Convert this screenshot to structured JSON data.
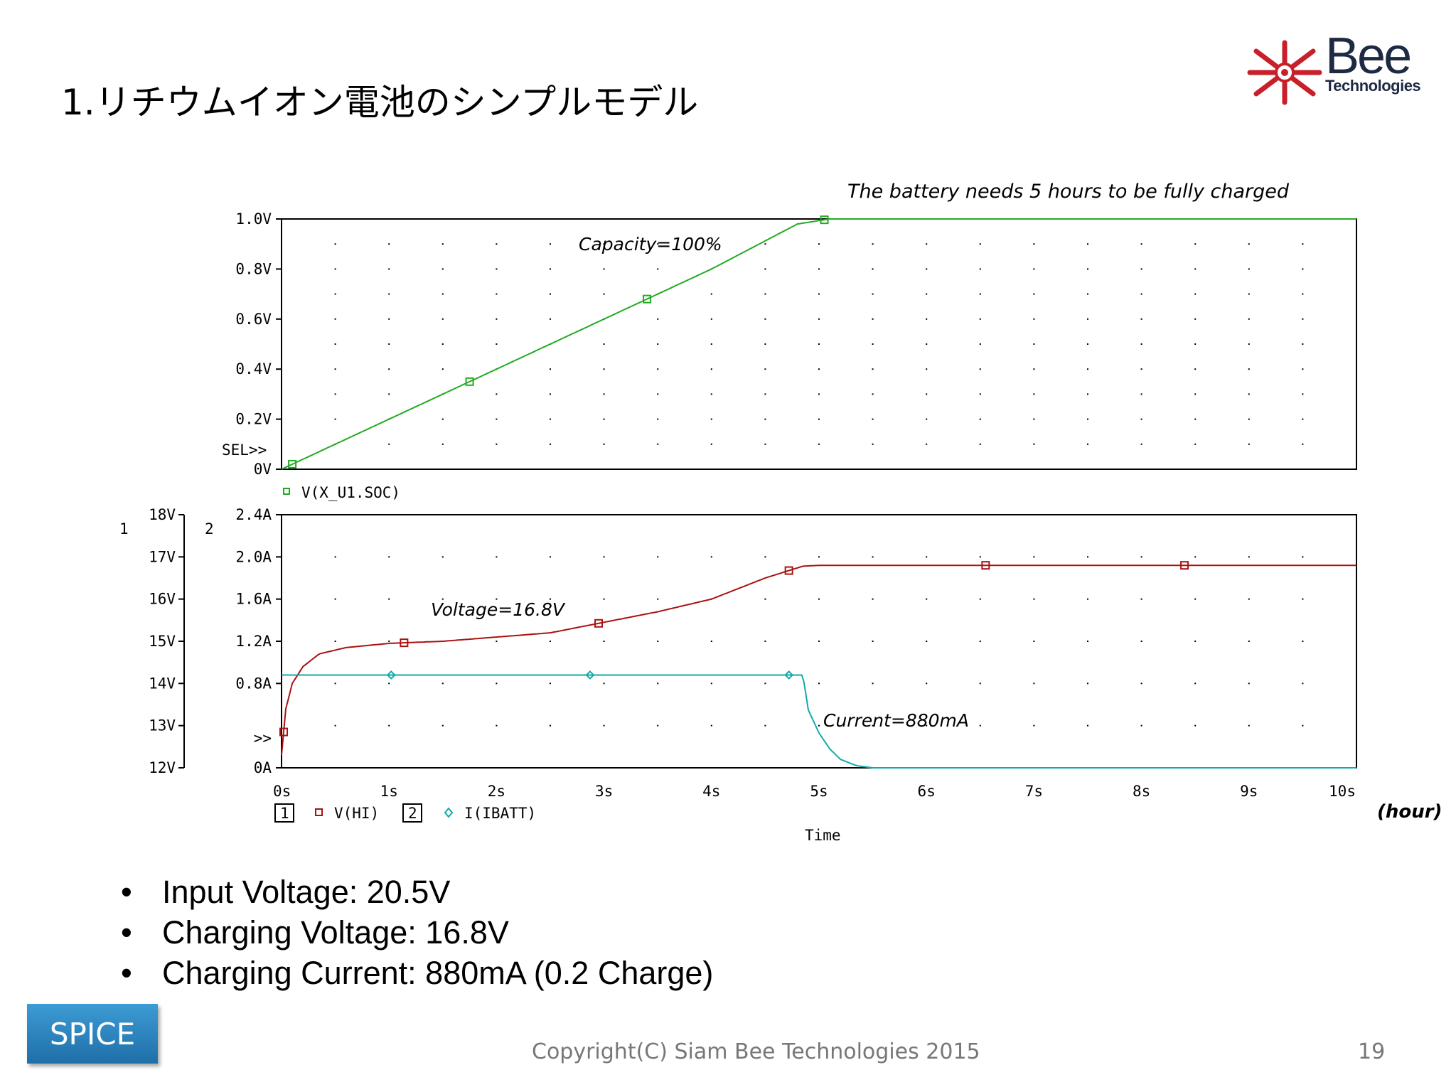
{
  "slide": {
    "title": "1.リチウムイオン電池のシンプルモデル",
    "logo_main": "Bee",
    "logo_sub": "Technologies",
    "bullets": [
      "Input Voltage: 20.5V",
      "Charging Voltage: 16.8V",
      "Charging Current: 880mA (0.2 Charge)"
    ],
    "spice_label": "SPICE",
    "copyright": "Copyright(C) Siam Bee Technologies 2015",
    "page_number": "19",
    "colors": {
      "logo_red": "#c8202a",
      "logo_text": "#1e2a44",
      "spice_bg": "#2a86c2"
    }
  },
  "chart_data": [
    {
      "type": "line",
      "annotations": [
        "The battery needs 5 hours to be fully charged",
        "Capacity=100%"
      ],
      "ylim": [
        0,
        1.0
      ],
      "ytick_labels": [
        "1.0V",
        "0.8V",
        "0.6V",
        "0.4V",
        "0.2V",
        "0V"
      ],
      "sel_label": "SEL>>",
      "xlim": [
        0,
        10
      ],
      "grid": "dotted",
      "series": [
        {
          "name": "V(X_U1.SOC)",
          "color": "#22aa22",
          "x": [
            0,
            1,
            2,
            3,
            4,
            4.8,
            5.1,
            10
          ],
          "y": [
            0,
            0.2,
            0.4,
            0.6,
            0.8,
            0.98,
            1.0,
            1.0
          ],
          "markers_x": [
            0.1,
            1.75,
            3.4,
            5.05
          ]
        }
      ]
    },
    {
      "type": "line",
      "annotations": [
        "Voltage=16.8V",
        "Current=880mA"
      ],
      "axis_numbers": [
        "1",
        "2"
      ],
      "y1lim": [
        12,
        18
      ],
      "y1tick_labels": [
        "18V",
        "17V",
        "16V",
        "15V",
        "14V",
        "13V",
        "12V"
      ],
      "y2lim": [
        0,
        2.4
      ],
      "y2tick_labels": [
        "2.4A",
        "2.0A",
        "1.6A",
        "1.2A",
        "0.8A",
        ">>",
        "0A"
      ],
      "xlim": [
        0,
        10
      ],
      "xtick_labels": [
        "0s",
        "1s",
        "2s",
        "3s",
        "4s",
        "5s",
        "6s",
        "7s",
        "8s",
        "9s",
        "10s"
      ],
      "xlabel": "Time",
      "xunit_note": "(hour)",
      "legend": [
        {
          "axis": "1",
          "name": "V(HI)",
          "color": "#aa1111"
        },
        {
          "axis": "2",
          "name": "I(IBATT)",
          "color": "#11aaaa"
        }
      ],
      "series": [
        {
          "name": "V(HI)",
          "axis": "y1",
          "color": "#aa1111",
          "x": [
            0,
            0.04,
            0.1,
            0.2,
            0.35,
            0.6,
            1.0,
            1.5,
            2.0,
            2.5,
            3.0,
            3.5,
            4.0,
            4.5,
            4.85,
            5.0,
            10
          ],
          "y": [
            12.3,
            13.4,
            14.0,
            14.4,
            14.7,
            14.85,
            14.95,
            15.0,
            15.1,
            15.2,
            15.45,
            15.7,
            16.0,
            16.5,
            16.78,
            16.8,
            16.8
          ],
          "markers_x": [
            0.02,
            1.14,
            2.95,
            4.72,
            6.55,
            8.4
          ]
        },
        {
          "name": "I(IBATT)",
          "axis": "y2",
          "color": "#11aaaa",
          "x": [
            0,
            4.85,
            4.9,
            5.0,
            5.1,
            5.2,
            5.35,
            5.5,
            10
          ],
          "y": [
            0.88,
            0.88,
            0.55,
            0.33,
            0.18,
            0.08,
            0.02,
            0.0,
            0.0
          ],
          "markers_x": [
            1.02,
            2.87,
            4.72
          ]
        }
      ]
    }
  ]
}
